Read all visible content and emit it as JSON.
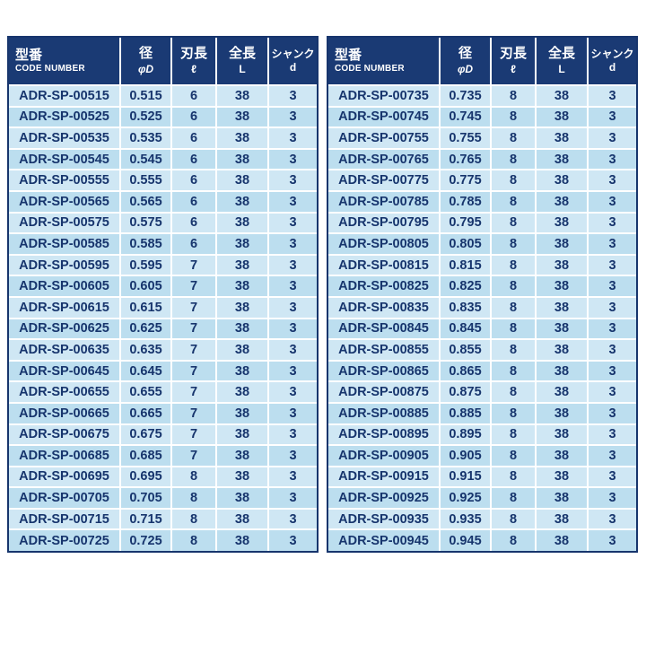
{
  "colors": {
    "header_bg": "#1a3a74",
    "header_text": "#ffffff",
    "row_odd": "#cfe7f4",
    "row_even": "#bcdeef",
    "cell_text": "#17356d",
    "grid": "#ffffff",
    "table_border": "#17356d"
  },
  "tables": [
    {
      "headers": [
        {
          "label": "型番",
          "sublabel": "CODE NUMBER"
        },
        {
          "label": "径",
          "sublabel": "φD"
        },
        {
          "label": "刃長",
          "sublabel": "ℓ"
        },
        {
          "label": "全長",
          "sublabel": "L"
        },
        {
          "label": "シャンク",
          "sublabel": "d"
        }
      ],
      "rows": [
        [
          "ADR-SP-00515",
          "0.515",
          "6",
          "38",
          "3"
        ],
        [
          "ADR-SP-00525",
          "0.525",
          "6",
          "38",
          "3"
        ],
        [
          "ADR-SP-00535",
          "0.535",
          "6",
          "38",
          "3"
        ],
        [
          "ADR-SP-00545",
          "0.545",
          "6",
          "38",
          "3"
        ],
        [
          "ADR-SP-00555",
          "0.555",
          "6",
          "38",
          "3"
        ],
        [
          "ADR-SP-00565",
          "0.565",
          "6",
          "38",
          "3"
        ],
        [
          "ADR-SP-00575",
          "0.575",
          "6",
          "38",
          "3"
        ],
        [
          "ADR-SP-00585",
          "0.585",
          "6",
          "38",
          "3"
        ],
        [
          "ADR-SP-00595",
          "0.595",
          "7",
          "38",
          "3"
        ],
        [
          "ADR-SP-00605",
          "0.605",
          "7",
          "38",
          "3"
        ],
        [
          "ADR-SP-00615",
          "0.615",
          "7",
          "38",
          "3"
        ],
        [
          "ADR-SP-00625",
          "0.625",
          "7",
          "38",
          "3"
        ],
        [
          "ADR-SP-00635",
          "0.635",
          "7",
          "38",
          "3"
        ],
        [
          "ADR-SP-00645",
          "0.645",
          "7",
          "38",
          "3"
        ],
        [
          "ADR-SP-00655",
          "0.655",
          "7",
          "38",
          "3"
        ],
        [
          "ADR-SP-00665",
          "0.665",
          "7",
          "38",
          "3"
        ],
        [
          "ADR-SP-00675",
          "0.675",
          "7",
          "38",
          "3"
        ],
        [
          "ADR-SP-00685",
          "0.685",
          "7",
          "38",
          "3"
        ],
        [
          "ADR-SP-00695",
          "0.695",
          "8",
          "38",
          "3"
        ],
        [
          "ADR-SP-00705",
          "0.705",
          "8",
          "38",
          "3"
        ],
        [
          "ADR-SP-00715",
          "0.715",
          "8",
          "38",
          "3"
        ],
        [
          "ADR-SP-00725",
          "0.725",
          "8",
          "38",
          "3"
        ]
      ]
    },
    {
      "headers": [
        {
          "label": "型番",
          "sublabel": "CODE NUMBER"
        },
        {
          "label": "径",
          "sublabel": "φD"
        },
        {
          "label": "刃長",
          "sublabel": "ℓ"
        },
        {
          "label": "全長",
          "sublabel": "L"
        },
        {
          "label": "シャンク",
          "sublabel": "d"
        }
      ],
      "rows": [
        [
          "ADR-SP-00735",
          "0.735",
          "8",
          "38",
          "3"
        ],
        [
          "ADR-SP-00745",
          "0.745",
          "8",
          "38",
          "3"
        ],
        [
          "ADR-SP-00755",
          "0.755",
          "8",
          "38",
          "3"
        ],
        [
          "ADR-SP-00765",
          "0.765",
          "8",
          "38",
          "3"
        ],
        [
          "ADR-SP-00775",
          "0.775",
          "8",
          "38",
          "3"
        ],
        [
          "ADR-SP-00785",
          "0.785",
          "8",
          "38",
          "3"
        ],
        [
          "ADR-SP-00795",
          "0.795",
          "8",
          "38",
          "3"
        ],
        [
          "ADR-SP-00805",
          "0.805",
          "8",
          "38",
          "3"
        ],
        [
          "ADR-SP-00815",
          "0.815",
          "8",
          "38",
          "3"
        ],
        [
          "ADR-SP-00825",
          "0.825",
          "8",
          "38",
          "3"
        ],
        [
          "ADR-SP-00835",
          "0.835",
          "8",
          "38",
          "3"
        ],
        [
          "ADR-SP-00845",
          "0.845",
          "8",
          "38",
          "3"
        ],
        [
          "ADR-SP-00855",
          "0.855",
          "8",
          "38",
          "3"
        ],
        [
          "ADR-SP-00865",
          "0.865",
          "8",
          "38",
          "3"
        ],
        [
          "ADR-SP-00875",
          "0.875",
          "8",
          "38",
          "3"
        ],
        [
          "ADR-SP-00885",
          "0.885",
          "8",
          "38",
          "3"
        ],
        [
          "ADR-SP-00895",
          "0.895",
          "8",
          "38",
          "3"
        ],
        [
          "ADR-SP-00905",
          "0.905",
          "8",
          "38",
          "3"
        ],
        [
          "ADR-SP-00915",
          "0.915",
          "8",
          "38",
          "3"
        ],
        [
          "ADR-SP-00925",
          "0.925",
          "8",
          "38",
          "3"
        ],
        [
          "ADR-SP-00935",
          "0.935",
          "8",
          "38",
          "3"
        ],
        [
          "ADR-SP-00945",
          "0.945",
          "8",
          "38",
          "3"
        ]
      ]
    }
  ]
}
